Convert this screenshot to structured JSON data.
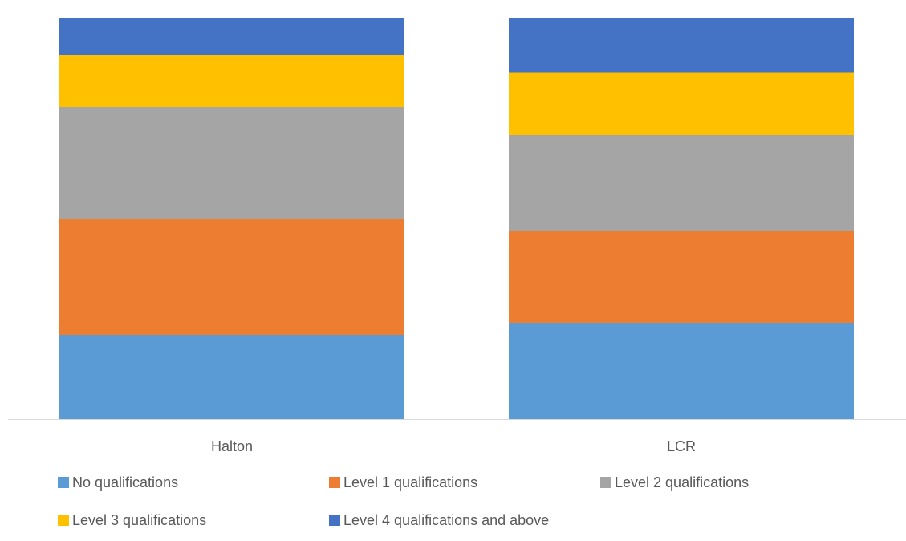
{
  "chart_data": {
    "type": "bar",
    "stacked": true,
    "percent_stacked": true,
    "categories": [
      "Halton",
      "LCR"
    ],
    "series": [
      {
        "name": "No qualifications",
        "values": [
          21,
          24
        ],
        "color": "#5B9BD5"
      },
      {
        "name": "Level 1 qualifications",
        "values": [
          29,
          23
        ],
        "color": "#ED7D31"
      },
      {
        "name": "Level 2 qualifications",
        "values": [
          28,
          24
        ],
        "color": "#A5A5A5"
      },
      {
        "name": "Level 3 qualifications",
        "values": [
          13,
          15.5
        ],
        "color": "#FFC000"
      },
      {
        "name": "Level 4 qualifications and above",
        "values": [
          9,
          13.5
        ],
        "color": "#4472C4"
      }
    ],
    "ylim": [
      0,
      100
    ],
    "title": "",
    "xlabel": "",
    "ylabel": "",
    "grid": false,
    "legend_position": "bottom",
    "axis_line_color": "#D9D9D9"
  }
}
